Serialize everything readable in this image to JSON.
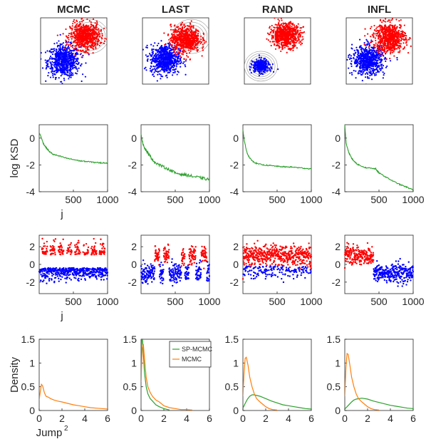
{
  "colors": {
    "red": "#ff0000",
    "blue": "#0000ff",
    "green": "#2ca02c",
    "orange": "#ff7f0e",
    "contour": "#9a9a9a",
    "axis": "#262626"
  },
  "chart_data": [
    {
      "type": "scatter",
      "row": "samples",
      "methods": [
        "MCMC",
        "LAST",
        "RAND",
        "INFL"
      ],
      "grid": false,
      "ticks": false,
      "panels": [
        {
          "method": "MCMC",
          "red_center": [
            0.67,
            0.72
          ],
          "red_spread": [
            0.11,
            0.1
          ],
          "blue_center": [
            0.35,
            0.35
          ],
          "blue_spread": [
            0.12,
            0.12
          ],
          "contours_at": "red",
          "contour_center": [
            0.74,
            0.72
          ]
        },
        {
          "method": "LAST",
          "red_center": [
            0.65,
            0.68
          ],
          "red_spread": [
            0.11,
            0.1
          ],
          "blue_center": [
            0.34,
            0.38
          ],
          "blue_spread": [
            0.11,
            0.11
          ],
          "contours_at": "red",
          "contour_center": [
            0.74,
            0.72
          ]
        },
        {
          "method": "RAND",
          "red_center": [
            0.62,
            0.74
          ],
          "red_spread": [
            0.11,
            0.09
          ],
          "blue_center": [
            0.25,
            0.27
          ],
          "blue_spread": [
            0.06,
            0.05
          ],
          "contours_at": "blue",
          "contour_center": [
            0.25,
            0.27
          ]
        },
        {
          "method": "INFL",
          "red_center": [
            0.65,
            0.7
          ],
          "red_spread": [
            0.12,
            0.11
          ],
          "blue_center": [
            0.34,
            0.36
          ],
          "blue_spread": [
            0.12,
            0.11
          ],
          "contours_at": "none",
          "contour_center": [
            0.5,
            0.5
          ]
        }
      ]
    },
    {
      "type": "line",
      "row": "ksd",
      "ylabel": "log KSD",
      "xlabel": "j",
      "xlim": [
        0,
        1000
      ],
      "ylim": [
        -4,
        1
      ],
      "xticks": [
        500,
        1000
      ],
      "yticks": [
        0,
        -2,
        -4
      ],
      "panels": [
        {
          "method": "MCMC",
          "x": [
            0,
            20,
            60,
            100,
            150,
            200,
            300,
            400,
            500,
            600,
            700,
            800,
            900,
            1000
          ],
          "y": [
            0.4,
            0.2,
            -0.4,
            -0.7,
            -1.0,
            -1.2,
            -1.35,
            -1.5,
            -1.6,
            -1.7,
            -1.75,
            -1.8,
            -1.85,
            -1.85
          ]
        },
        {
          "method": "LAST",
          "x": [
            0,
            20,
            60,
            100,
            150,
            200,
            300,
            400,
            500,
            600,
            700,
            800,
            900,
            1000
          ],
          "y": [
            0.3,
            -0.3,
            -0.8,
            -1.1,
            -1.5,
            -1.8,
            -2.1,
            -2.3,
            -2.6,
            -2.7,
            -2.8,
            -2.9,
            -3.0,
            -3.1
          ]
        },
        {
          "method": "RAND",
          "x": [
            0,
            20,
            60,
            100,
            150,
            200,
            300,
            400,
            500,
            600,
            700,
            800,
            900,
            1000
          ],
          "y": [
            0.6,
            -0.2,
            -1.1,
            -1.5,
            -1.75,
            -1.9,
            -2.0,
            -2.05,
            -2.1,
            -2.15,
            -2.15,
            -2.2,
            -2.25,
            -2.3
          ]
        },
        {
          "method": "INFL",
          "x": [
            0,
            20,
            60,
            100,
            150,
            200,
            300,
            400,
            450,
            500,
            600,
            700,
            800,
            900,
            1000
          ],
          "y": [
            1.0,
            -0.4,
            -1.1,
            -1.5,
            -1.8,
            -2.0,
            -2.2,
            -2.25,
            -2.3,
            -2.6,
            -2.9,
            -3.2,
            -3.45,
            -3.65,
            -3.85
          ]
        }
      ]
    },
    {
      "type": "scatter",
      "row": "trace",
      "xlabel": "j",
      "xlim": [
        0,
        1000
      ],
      "ylim": [
        -3.3,
        3.3
      ],
      "xticks": [
        500,
        1000
      ],
      "yticks": [
        2,
        0,
        -2
      ],
      "panels": [
        {
          "method": "MCMC",
          "mode": "mixed",
          "red_mean": 1.0,
          "blue_mean": -1.0,
          "spread": 0.55
        },
        {
          "method": "LAST",
          "mode": "blocks",
          "red_mean": 1.0,
          "blue_mean": -1.0,
          "spread": 0.55,
          "red_blocks": [
            [
              200,
              270
            ],
            [
              330,
              410
            ],
            [
              590,
              640
            ],
            [
              700,
              800
            ],
            [
              880,
              960
            ]
          ]
        },
        {
          "method": "RAND",
          "mode": "red-dense",
          "red_mean": 1.0,
          "blue_mean": -1.0,
          "spread": 0.55
        },
        {
          "method": "INFL",
          "mode": "switch",
          "switch_at": 420,
          "red_mean": 1.0,
          "blue_mean": -1.0,
          "spread": 0.55
        }
      ]
    },
    {
      "type": "line",
      "row": "density",
      "ylabel": "Density",
      "xlabel": "Jump",
      "xlabel_superscript": "2",
      "xlim": [
        0,
        6
      ],
      "ylim": [
        0,
        1.5
      ],
      "xticks": [
        0,
        2,
        4,
        6
      ],
      "yticks": [
        0,
        0.5,
        1,
        1.5
      ],
      "legend": {
        "panel": "LAST",
        "position": "top-right",
        "entries": [
          "SP-MCMC",
          "MCMC"
        ]
      },
      "panels": [
        {
          "method": "MCMC",
          "series": [
            {
              "name": "MCMC",
              "color": "orange",
              "x": [
                0,
                0.1,
                0.2,
                0.3,
                0.45,
                0.6,
                0.8,
                1.0,
                1.3,
                1.6,
                2.0,
                2.5,
                3.0,
                3.5,
                4.0,
                4.5,
                5.0,
                5.5,
                6.0
              ],
              "y": [
                0.22,
                0.4,
                0.55,
                0.52,
                0.38,
                0.3,
                0.28,
                0.25,
                0.22,
                0.2,
                0.18,
                0.15,
                0.12,
                0.1,
                0.08,
                0.06,
                0.05,
                0.04,
                0.03
              ]
            }
          ]
        },
        {
          "method": "LAST",
          "series": [
            {
              "name": "SP-MCMC",
              "color": "green",
              "x": [
                0,
                0.05,
                0.12,
                0.2,
                0.3,
                0.45,
                0.6,
                0.8,
                1.0,
                1.3,
                1.6,
                2.0,
                2.5
              ],
              "y": [
                0.6,
                1.5,
                1.5,
                1.2,
                0.8,
                0.5,
                0.35,
                0.25,
                0.2,
                0.12,
                0.08,
                0.04,
                0.01
              ]
            },
            {
              "name": "MCMC",
              "color": "orange",
              "x": [
                0,
                0.1,
                0.2,
                0.3,
                0.45,
                0.6,
                0.8,
                1.0,
                1.3,
                1.6,
                2.0,
                2.5,
                3.0,
                3.5,
                4.0,
                4.5
              ],
              "y": [
                0.6,
                1.3,
                1.4,
                1.1,
                0.7,
                0.5,
                0.38,
                0.3,
                0.22,
                0.18,
                0.1,
                0.06,
                0.04,
                0.02,
                0.02,
                0.01
              ]
            }
          ]
        },
        {
          "method": "RAND",
          "series": [
            {
              "name": "SP-MCMC",
              "color": "green",
              "x": [
                0,
                0.2,
                0.4,
                0.6,
                0.8,
                1.0,
                1.5,
                2.0,
                2.5,
                3.0,
                3.5,
                4.0,
                4.5,
                5.0,
                5.5,
                6.0
              ],
              "y": [
                0.05,
                0.15,
                0.24,
                0.3,
                0.33,
                0.33,
                0.3,
                0.25,
                0.2,
                0.16,
                0.12,
                0.1,
                0.08,
                0.06,
                0.04,
                0.03
              ]
            },
            {
              "name": "MCMC",
              "color": "orange",
              "x": [
                0,
                0.1,
                0.2,
                0.3,
                0.45,
                0.6,
                0.8,
                1.0,
                1.2,
                1.5,
                1.8,
                2.0,
                2.3,
                2.6,
                3.0
              ],
              "y": [
                0.3,
                0.8,
                1.1,
                1.12,
                0.95,
                0.7,
                0.5,
                0.35,
                0.25,
                0.18,
                0.12,
                0.08,
                0.04,
                0.02,
                0.01
              ]
            }
          ]
        },
        {
          "method": "INFL",
          "series": [
            {
              "name": "SP-MCMC",
              "color": "green",
              "x": [
                0,
                0.2,
                0.4,
                0.6,
                0.8,
                1.0,
                1.5,
                2.0,
                2.5,
                3.0,
                3.5,
                4.0,
                4.5,
                5.0,
                5.5,
                6.0
              ],
              "y": [
                0.03,
                0.08,
                0.13,
                0.18,
                0.22,
                0.24,
                0.26,
                0.24,
                0.2,
                0.17,
                0.14,
                0.11,
                0.09,
                0.07,
                0.05,
                0.04
              ]
            },
            {
              "name": "MCMC",
              "color": "orange",
              "x": [
                0,
                0.1,
                0.2,
                0.3,
                0.45,
                0.6,
                0.8,
                1.0,
                1.2,
                1.5,
                1.8,
                2.0,
                2.3,
                2.6,
                3.0
              ],
              "y": [
                0.3,
                0.9,
                1.2,
                1.18,
                0.95,
                0.7,
                0.5,
                0.35,
                0.25,
                0.18,
                0.12,
                0.08,
                0.04,
                0.02,
                0.01
              ]
            }
          ]
        }
      ]
    }
  ]
}
